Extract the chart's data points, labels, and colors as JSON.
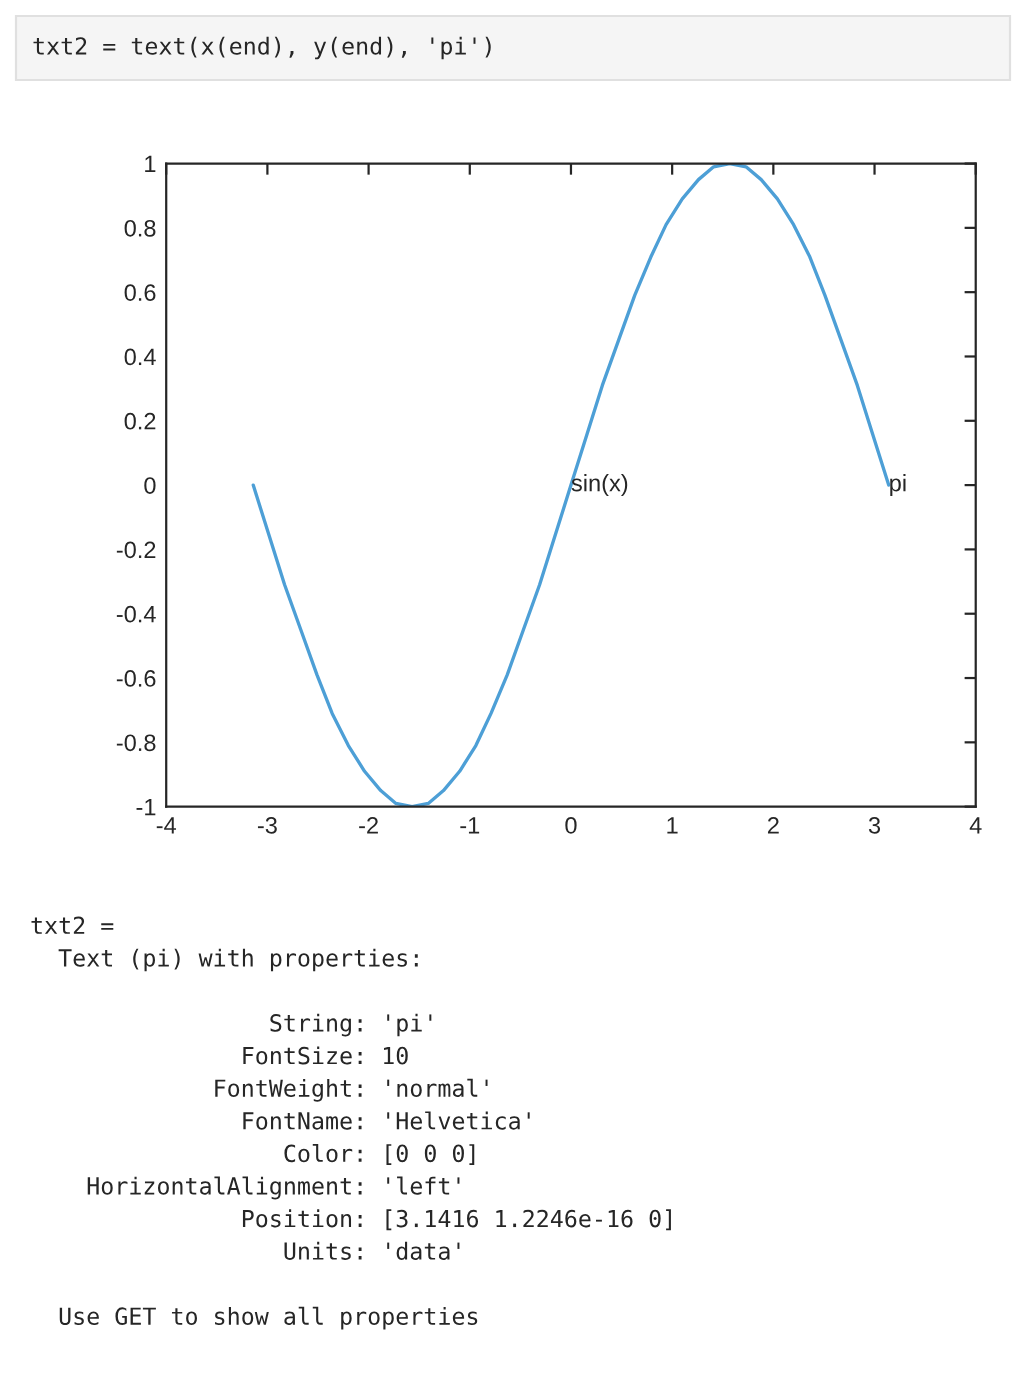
{
  "chart_data": {
    "type": "line",
    "x": [
      -3.14,
      -2.98,
      -2.83,
      -2.67,
      -2.51,
      -2.36,
      -2.2,
      -2.04,
      -1.88,
      -1.73,
      -1.57,
      -1.41,
      -1.26,
      -1.1,
      -0.94,
      -0.79,
      -0.63,
      -0.47,
      -0.31,
      -0.16,
      0,
      0.16,
      0.31,
      0.47,
      0.63,
      0.79,
      0.94,
      1.1,
      1.26,
      1.41,
      1.57,
      1.73,
      1.88,
      2.04,
      2.2,
      2.36,
      2.51,
      2.67,
      2.83,
      2.98,
      3.14
    ],
    "series": [
      {
        "color": "#4d9fd6",
        "values": [
          0,
          -0.16,
          -0.31,
          -0.45,
          -0.59,
          -0.71,
          -0.81,
          -0.89,
          -0.95,
          -0.99,
          -1,
          -0.99,
          -0.95,
          -0.89,
          -0.81,
          -0.71,
          -0.59,
          -0.45,
          -0.31,
          -0.16,
          0,
          0.16,
          0.31,
          0.45,
          0.59,
          0.71,
          0.81,
          0.89,
          0.95,
          0.99,
          1,
          0.99,
          0.95,
          0.89,
          0.81,
          0.71,
          0.59,
          0.45,
          0.31,
          0.16,
          0
        ]
      }
    ],
    "xlim": [
      -4,
      4
    ],
    "xticks": [
      -4,
      -3,
      -2,
      -1,
      0,
      1,
      2,
      3,
      4
    ],
    "ylim": [
      -1,
      1
    ],
    "yticks": [
      -1,
      -0.8,
      -0.6,
      -0.4,
      -0.2,
      0,
      0.2,
      0.4,
      0.6,
      0.8,
      1
    ],
    "grid": false,
    "legend": false,
    "marker": "none",
    "line_style": "solid",
    "annotations": [
      "txt2 = text(x(end), y(end), 'pi')",
      "txt2 = \n  Text (pi) with properties:\n\n                 String: 'pi'\n               FontSize: 10\n             FontWeight: 'normal'\n               FontName: 'Helvetica'\n                  Color: [0 0 0]\n    HorizontalAlignment: 'left'\n               Position: [3.1416 1.2246e-16 0]\n                  Units: 'data'\n\n  Use GET to show all properties",
      {
        "text": "sin(x)",
        "x": 0,
        "y": 0
      },
      {
        "text": "pi",
        "x": 3.14,
        "y": 0
      }
    ]
  }
}
